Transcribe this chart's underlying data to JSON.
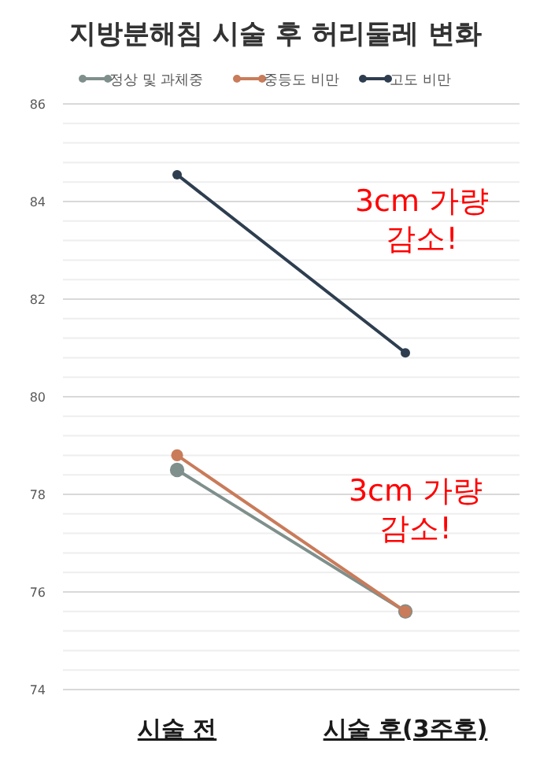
{
  "chart_data": {
    "type": "line",
    "title": "지방분해침 시술 후 허리둘레 변화",
    "categories": [
      "시술 전",
      "시술 후(3주후)"
    ],
    "series": [
      {
        "name": "정상 및 과체중",
        "color": "#7f8f8c",
        "values": [
          78.5,
          75.6
        ]
      },
      {
        "name": "중등도 비만",
        "color": "#c97b5a",
        "values": [
          78.8,
          75.6
        ]
      },
      {
        "name": "고도 비만",
        "color": "#2e3e50",
        "values": [
          84.55,
          80.9
        ]
      }
    ],
    "ylim": [
      74,
      86
    ],
    "yticks": [
      74,
      {
        "value": 74.4,
        "label": null
      },
      {
        "value": 74.8,
        "label": null
      },
      {
        "value": 75.2,
        "label": null
      },
      {
        "value": 75.6,
        "label": null
      },
      76,
      {
        "value": 76.4,
        "label": null
      },
      {
        "value": 76.8,
        "label": null
      },
      {
        "value": 77.2,
        "label": null
      },
      {
        "value": 77.6,
        "label": null
      },
      78,
      {
        "value": 78.4,
        "label": null
      },
      {
        "value": 78.8,
        "label": null
      },
      {
        "value": 79.2,
        "label": null
      },
      {
        "value": 79.6,
        "label": null
      },
      80,
      {
        "value": 80.4,
        "label": null
      },
      {
        "value": 80.8,
        "label": null
      },
      {
        "value": 81.2,
        "label": null
      },
      {
        "value": 81.6,
        "label": null
      },
      82,
      {
        "value": 82.4,
        "label": null
      },
      {
        "value": 82.8,
        "label": null
      },
      {
        "value": 83.2,
        "label": null
      },
      {
        "value": 83.6,
        "label": null
      },
      84,
      {
        "value": 84.4,
        "label": null
      },
      {
        "value": 84.8,
        "label": null
      },
      {
        "value": 85.2,
        "label": null
      },
      {
        "value": 85.6,
        "label": null
      },
      86
    ],
    "grid": true,
    "legend": "top",
    "marker": "circle",
    "line_style": "solid",
    "annotations": [
      "3cm 가량\n감소!",
      "3cm 가량\n감소!"
    ]
  }
}
